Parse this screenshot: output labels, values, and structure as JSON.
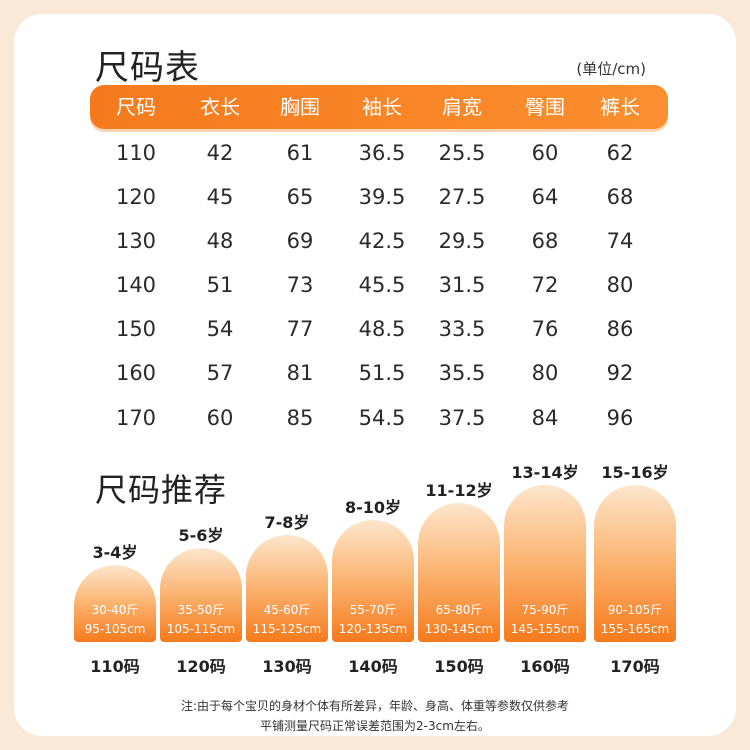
{
  "table": {
    "title": "尺码表",
    "unit": "(单位/cm)",
    "headers": [
      "尺码",
      "衣长",
      "胸围",
      "袖长",
      "肩宽",
      "臀围",
      "裤长"
    ],
    "rows": [
      [
        "110",
        "42",
        "61",
        "36.5",
        "25.5",
        "60",
        "62"
      ],
      [
        "120",
        "45",
        "65",
        "39.5",
        "27.5",
        "64",
        "68"
      ],
      [
        "130",
        "48",
        "69",
        "42.5",
        "29.5",
        "68",
        "74"
      ],
      [
        "140",
        "51",
        "73",
        "45.5",
        "31.5",
        "72",
        "80"
      ],
      [
        "150",
        "54",
        "77",
        "48.5",
        "33.5",
        "76",
        "86"
      ],
      [
        "160",
        "57",
        "81",
        "51.5",
        "35.5",
        "80",
        "92"
      ],
      [
        "170",
        "60",
        "85",
        "54.5",
        "37.5",
        "84",
        "96"
      ]
    ]
  },
  "recommend": {
    "title": "尺码推荐",
    "items": [
      {
        "age": "3-4岁",
        "weight": "30-40斤",
        "height": "95-105cm",
        "size": "110码"
      },
      {
        "age": "5-6岁",
        "weight": "35-50斤",
        "height": "105-115cm",
        "size": "120码"
      },
      {
        "age": "7-8岁",
        "weight": "45-60斤",
        "height": "115-125cm",
        "size": "130码"
      },
      {
        "age": "8-10岁",
        "weight": "55-70斤",
        "height": "120-135cm",
        "size": "140码"
      },
      {
        "age": "11-12岁",
        "weight": "65-80斤",
        "height": "130-145cm",
        "size": "150码"
      },
      {
        "age": "13-14岁",
        "weight": "75-90斤",
        "height": "145-155cm",
        "size": "160码"
      },
      {
        "age": "15-16岁",
        "weight": "90-105斤",
        "height": "155-165cm",
        "size": "170码"
      }
    ]
  },
  "notes": {
    "line1": "注:由于每个宝贝的身材个体有所差异，年龄、身高、体重等参数仅供参考",
    "line2": "平铺测量尺码正常误差范围为2-3cm左右。"
  },
  "colors": {
    "accent": "#f67a1c",
    "background": "#fbe9d8"
  }
}
